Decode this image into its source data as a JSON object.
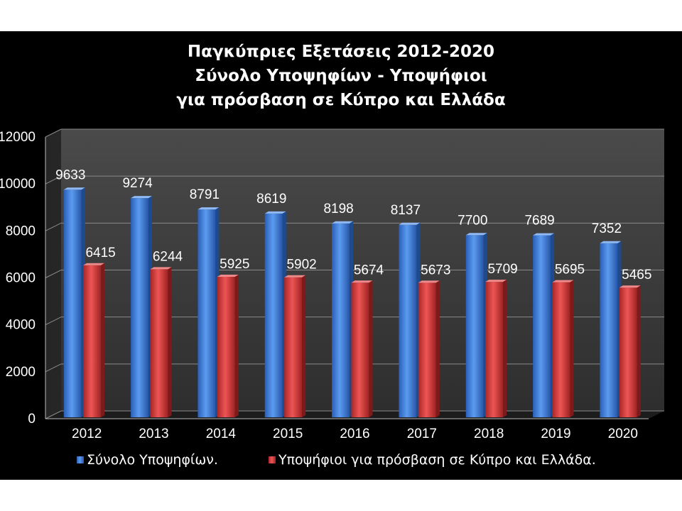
{
  "chart_data": {
    "type": "bar",
    "title_lines": [
      "Παγκύπριες Εξετάσεις 2012-2020",
      "Σύνολο Υποψηφίων - Υποψήφιοι",
      "για πρόσβαση σε Κύπρο και Ελλάδα"
    ],
    "categories": [
      "2012",
      "2013",
      "2014",
      "2015",
      "2016",
      "2017",
      "2018",
      "2019",
      "2020"
    ],
    "series": [
      {
        "name": "Σύνολο Υποψηφίων.",
        "color": "#3d7ee0",
        "values": [
          9633,
          9274,
          8791,
          8619,
          8198,
          8137,
          7700,
          7689,
          7352
        ]
      },
      {
        "name": "Υποψήφιοι για πρόσβαση σε Κύπρο και Ελλάδα.",
        "color": "#d93b3b",
        "values": [
          6415,
          6244,
          5925,
          5902,
          5674,
          5673,
          5709,
          5695,
          5465
        ]
      }
    ],
    "ylim": [
      0,
      12000
    ],
    "yticks": [
      "0",
      "2000",
      "4000",
      "6000",
      "8000",
      "10000",
      "12000"
    ],
    "grid": true,
    "data_labels": true,
    "legend_position": "bottom",
    "background": "#000000",
    "plot_background": "#3a3a3a"
  }
}
